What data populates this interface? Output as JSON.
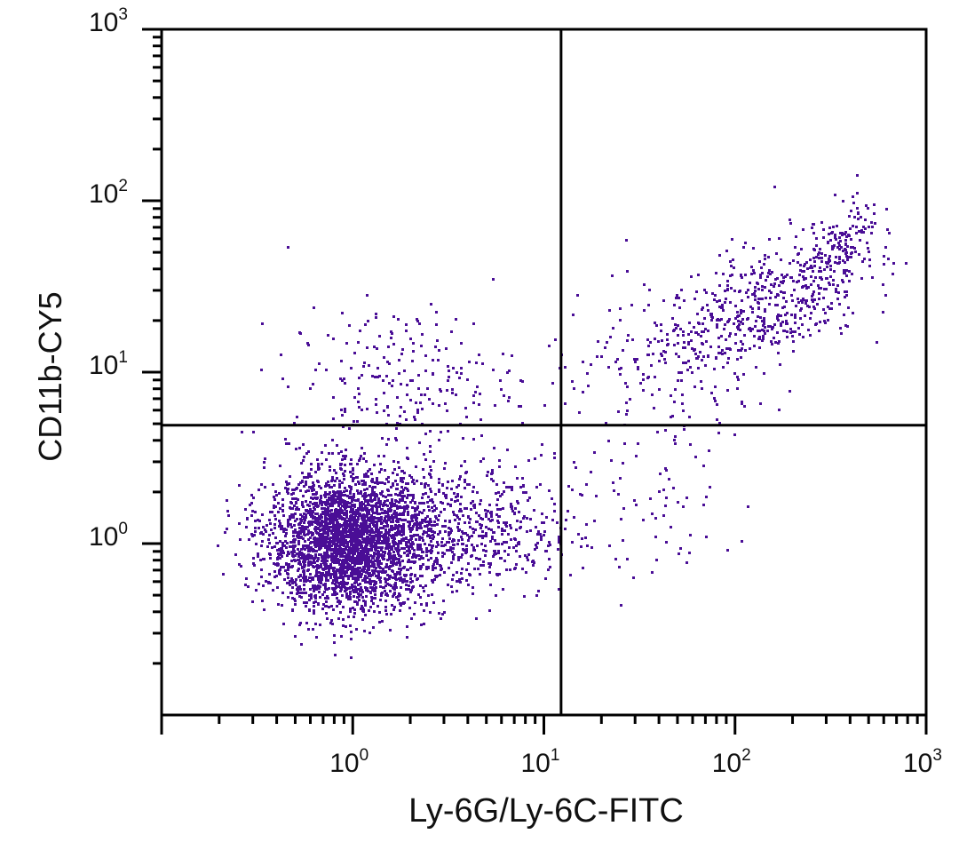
{
  "chart_data": {
    "type": "scatter",
    "subtype": "flow-cytometry-dot-plot",
    "title": "",
    "xlabel": "Ly-6G/Ly-6C-FITC",
    "ylabel": "CD11b-CY5",
    "xscale": "log",
    "yscale": "log",
    "xlim": [
      0.1,
      1000
    ],
    "ylim": [
      0.1,
      1000
    ],
    "x_ticks": [
      {
        "base": "10",
        "exp": "0",
        "value": 1
      },
      {
        "base": "10",
        "exp": "1",
        "value": 10
      },
      {
        "base": "10",
        "exp": "2",
        "value": 100
      },
      {
        "base": "10",
        "exp": "3",
        "value": 1000
      }
    ],
    "y_ticks": [
      {
        "base": "10",
        "exp": "0",
        "value": 1
      },
      {
        "base": "10",
        "exp": "1",
        "value": 10
      },
      {
        "base": "10",
        "exp": "2",
        "value": 100
      },
      {
        "base": "10",
        "exp": "3",
        "value": 1000
      }
    ],
    "grid": false,
    "legend": null,
    "quadrant_gates": {
      "x": 12.3,
      "y": 4.9
    },
    "point_color": "#4a0e96",
    "populations": [
      {
        "name": "CD11b- Ly-6G/Ly-6C- (main, lower-left)",
        "center_log": [
          -0.03,
          0.02
        ],
        "sd_log": [
          0.21,
          0.2
        ],
        "count": 3000
      },
      {
        "name": "lower-left tail toward gate",
        "center_log": [
          0.55,
          0.08
        ],
        "sd_log": [
          0.3,
          0.2
        ],
        "count": 650
      },
      {
        "name": "CD11b+ Ly-6G/Ly-6C- (upper-left)",
        "center_log": [
          0.25,
          0.95
        ],
        "sd_log": [
          0.3,
          0.22
        ],
        "count": 230
      },
      {
        "name": "CD11b+ Ly-6G/Ly-6C+ (upper-right, main)",
        "center_log": [
          2.1,
          1.38
        ],
        "sd_log": [
          0.28,
          0.22
        ],
        "count": 520
      },
      {
        "name": "CD11b+ Ly-6G/Ly-6C+ (upper-right, bright)",
        "center_log": [
          2.55,
          1.72
        ],
        "sd_log": [
          0.1,
          0.16
        ],
        "count": 160
      },
      {
        "name": "upper-right low tail",
        "center_log": [
          1.55,
          0.95
        ],
        "sd_log": [
          0.3,
          0.25
        ],
        "count": 110
      },
      {
        "name": "lower-right sparse",
        "center_log": [
          1.5,
          0.3
        ],
        "sd_log": [
          0.3,
          0.22
        ],
        "count": 70
      }
    ]
  }
}
